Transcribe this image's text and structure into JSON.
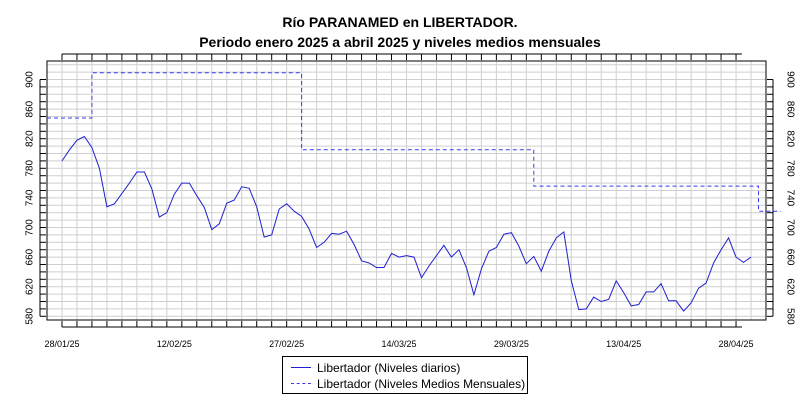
{
  "title": "Río PARANAMED en LIBERTADOR.",
  "subtitle": "Periodo enero 2025 a abril 2025 y niveles medios mensuales",
  "chart_data": {
    "type": "line",
    "title": "Río PARANAMED en LIBERTADOR.",
    "subtitle": "Periodo enero 2025 a abril 2025 y niveles medios mensuales",
    "xlabel": "",
    "ylabel": "",
    "ylim": [
      575,
      925
    ],
    "yticks": [
      580,
      620,
      660,
      700,
      740,
      780,
      820,
      860,
      900
    ],
    "xticks": [
      "28/01/25",
      "12/02/25",
      "27/02/25",
      "14/03/25",
      "29/03/25",
      "13/04/25",
      "28/04/25"
    ],
    "x_start": "26/01/25",
    "x_end": "02/05/25",
    "grid": true,
    "legend_position": "bottom-center",
    "series": [
      {
        "name": "Libertador (Niveles diarios)",
        "style": "solid",
        "color": "#1f1fcf",
        "start_date": "28/01/25",
        "step_days": 1,
        "values": [
          790,
          805,
          818,
          823,
          808,
          780,
          728,
          732,
          746,
          760,
          775,
          775,
          752,
          714,
          720,
          745,
          760,
          760,
          743,
          727,
          697,
          705,
          733,
          737,
          755,
          753,
          728,
          687,
          690,
          725,
          732,
          722,
          715,
          698,
          673,
          680,
          692,
          691,
          695,
          677,
          655,
          652,
          646,
          646,
          665,
          660,
          662,
          660,
          632,
          648,
          662,
          676,
          660,
          670,
          646,
          609,
          644,
          668,
          673,
          691,
          693,
          675,
          651,
          661,
          641,
          668,
          686,
          694,
          628,
          589,
          590,
          606,
          600,
          603,
          628,
          612,
          594,
          596,
          613,
          613,
          624,
          601,
          601,
          587,
          598,
          618,
          625,
          652,
          670,
          686,
          660,
          653,
          660
        ]
      },
      {
        "name": "Libertador (Niveles Medios Mensuales)",
        "style": "dashed",
        "color": "#3a3af0",
        "steps": [
          {
            "from": "26/01/25",
            "to": "01/02/25",
            "value": 848
          },
          {
            "from": "01/02/25",
            "to": "01/03/25",
            "value": 909
          },
          {
            "from": "01/03/25",
            "to": "01/04/25",
            "value": 805
          },
          {
            "from": "01/04/25",
            "to": "01/05/25",
            "value": 756
          },
          {
            "from": "01/05/25",
            "to": "04/05/25",
            "value": 722
          }
        ]
      }
    ]
  },
  "legend": {
    "items": [
      {
        "label": "Libertador (Niveles diarios)"
      },
      {
        "label": "Libertador (Niveles Medios Mensuales)"
      }
    ]
  }
}
